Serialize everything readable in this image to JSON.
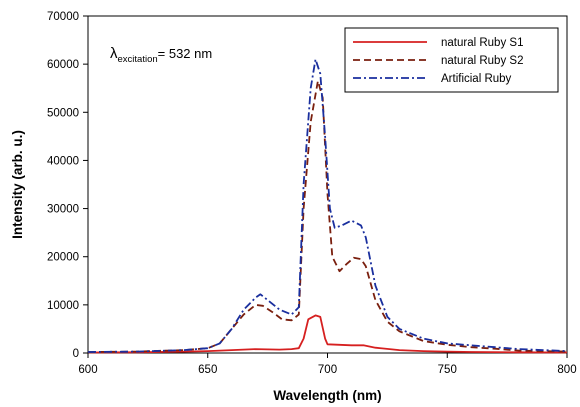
{
  "chart_data": {
    "type": "line",
    "title": "",
    "xlabel": "Wavelength (nm)",
    "ylabel": "Intensity (arb. u.)",
    "xlim": [
      600,
      800
    ],
    "ylim": [
      0,
      70000
    ],
    "x_ticks": [
      "600",
      "650",
      "700",
      "750",
      "800"
    ],
    "y_ticks": [
      "0",
      "10000",
      "20000",
      "30000",
      "40000",
      "50000",
      "60000",
      "70000"
    ],
    "grid": false,
    "legend_position": "top-right",
    "annotation": {
      "symbol": "λ",
      "subscript": "excitation",
      "text": "= 532 nm"
    },
    "series": [
      {
        "name": "natural Ruby S1",
        "color": "#d62020",
        "dash": "solid",
        "points": [
          [
            600,
            100
          ],
          [
            620,
            150
          ],
          [
            640,
            300
          ],
          [
            650,
            400
          ],
          [
            660,
            600
          ],
          [
            670,
            800
          ],
          [
            675,
            750
          ],
          [
            680,
            700
          ],
          [
            685,
            800
          ],
          [
            688,
            1000
          ],
          [
            690,
            3000
          ],
          [
            692,
            7000
          ],
          [
            695,
            7800
          ],
          [
            697,
            7500
          ],
          [
            699,
            3000
          ],
          [
            700,
            1800
          ],
          [
            705,
            1700
          ],
          [
            710,
            1600
          ],
          [
            715,
            1600
          ],
          [
            720,
            1100
          ],
          [
            730,
            600
          ],
          [
            740,
            400
          ],
          [
            750,
            300
          ],
          [
            760,
            200
          ],
          [
            780,
            150
          ],
          [
            800,
            100
          ]
        ]
      },
      {
        "name": "natural Ruby S2",
        "color": "#7a1f0e",
        "dash": "dash",
        "points": [
          [
            600,
            200
          ],
          [
            620,
            300
          ],
          [
            640,
            600
          ],
          [
            650,
            1000
          ],
          [
            655,
            2000
          ],
          [
            660,
            5000
          ],
          [
            665,
            8000
          ],
          [
            670,
            10000
          ],
          [
            673,
            9800
          ],
          [
            677,
            8500
          ],
          [
            681,
            7000
          ],
          [
            685,
            6800
          ],
          [
            688,
            8000
          ],
          [
            690,
            30000
          ],
          [
            693,
            48000
          ],
          [
            696,
            56500
          ],
          [
            698,
            53000
          ],
          [
            700,
            33000
          ],
          [
            702,
            20000
          ],
          [
            705,
            17000
          ],
          [
            708,
            18500
          ],
          [
            711,
            19800
          ],
          [
            714,
            19500
          ],
          [
            716,
            18000
          ],
          [
            720,
            11000
          ],
          [
            725,
            6500
          ],
          [
            730,
            4500
          ],
          [
            740,
            2500
          ],
          [
            750,
            1700
          ],
          [
            760,
            1200
          ],
          [
            770,
            900
          ],
          [
            780,
            500
          ],
          [
            800,
            300
          ]
        ]
      },
      {
        "name": "Artificial Ruby",
        "color": "#1a2f9e",
        "dash": "dashdot",
        "points": [
          [
            600,
            200
          ],
          [
            620,
            300
          ],
          [
            640,
            600
          ],
          [
            650,
            1000
          ],
          [
            655,
            2000
          ],
          [
            660,
            5000
          ],
          [
            665,
            9000
          ],
          [
            670,
            11500
          ],
          [
            672,
            12200
          ],
          [
            675,
            11000
          ],
          [
            680,
            9000
          ],
          [
            685,
            8000
          ],
          [
            688,
            9500
          ],
          [
            690,
            35000
          ],
          [
            693,
            55000
          ],
          [
            695,
            61000
          ],
          [
            697,
            58000
          ],
          [
            699,
            45000
          ],
          [
            701,
            30000
          ],
          [
            703,
            26000
          ],
          [
            706,
            26500
          ],
          [
            710,
            27500
          ],
          [
            714,
            26500
          ],
          [
            716,
            24000
          ],
          [
            720,
            14000
          ],
          [
            725,
            7500
          ],
          [
            730,
            5000
          ],
          [
            740,
            3000
          ],
          [
            750,
            2000
          ],
          [
            760,
            1600
          ],
          [
            770,
            1200
          ],
          [
            780,
            800
          ],
          [
            800,
            400
          ]
        ]
      }
    ]
  }
}
